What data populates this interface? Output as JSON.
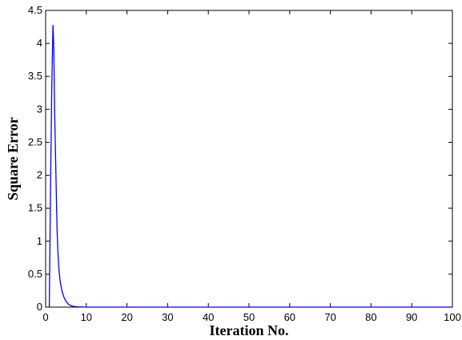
{
  "chart_data": {
    "type": "line",
    "title": "",
    "xlabel": "Iteration No.",
    "ylabel": "Square Error",
    "xlim": [
      0,
      100
    ],
    "ylim": [
      0,
      4.5
    ],
    "xticks": [
      0,
      10,
      20,
      30,
      40,
      50,
      60,
      70,
      80,
      90,
      100
    ],
    "xtick_labels": [
      "0",
      "10",
      "20",
      "30",
      "40",
      "50",
      "60",
      "70",
      "80",
      "90",
      "100"
    ],
    "yticks": [
      0,
      0.5,
      1,
      1.5,
      2,
      2.5,
      3,
      3.5,
      4,
      4.5
    ],
    "ytick_labels": [
      "0",
      "0.5",
      "1",
      "1.5",
      "2",
      "2.5",
      "3",
      "3.5",
      "4",
      "4.5"
    ],
    "grid": false,
    "legend": "none",
    "series": [
      {
        "color": "#0000ff",
        "x": [
          0.9,
          1.2,
          1.5,
          1.8,
          2.0,
          2.2,
          2.5,
          2.8,
          3.0,
          3.3,
          3.6,
          4.0,
          4.5,
          5.0,
          5.5,
          6.0,
          6.5,
          7.0,
          8.0,
          10,
          20,
          30,
          40,
          50,
          60,
          70,
          80,
          90,
          100
        ],
        "y": [
          0.0,
          1.8,
          3.3,
          4.28,
          3.95,
          3.0,
          2.1,
          1.2,
          0.85,
          0.55,
          0.38,
          0.25,
          0.15,
          0.09,
          0.05,
          0.03,
          0.015,
          0.01,
          0.005,
          0.0,
          0.0,
          0.0,
          0.0,
          0.0,
          0.0,
          0.0,
          0.0,
          0.0,
          0.0
        ]
      }
    ]
  }
}
